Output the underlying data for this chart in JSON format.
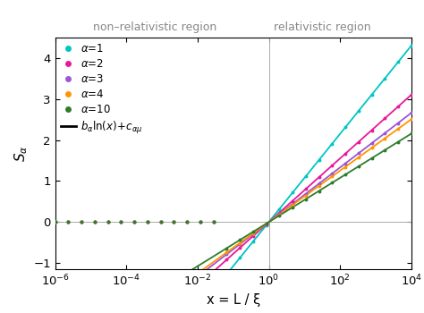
{
  "title_left": "non–relativistic region",
  "title_right": "relativistic region",
  "xlabel": "x = L / ξ",
  "ylabel": "$S_\\alpha$",
  "xlim_log": [
    -6,
    4
  ],
  "ylim": [
    -1.15,
    4.5
  ],
  "vline_x": 1.0,
  "hline_y": 0.0,
  "series": [
    {
      "alpha": 1,
      "b": 0.467,
      "c": 0.0,
      "color": "#00C5C5",
      "label": "\\u03b1=1"
    },
    {
      "alpha": 2,
      "b": 0.337,
      "c": 0.0,
      "color": "#E8189A",
      "label": "\\u03b1=2"
    },
    {
      "alpha": 3,
      "b": 0.289,
      "c": 0.0,
      "color": "#9B55D5",
      "label": "\\u03b1=3"
    },
    {
      "alpha": 4,
      "b": 0.272,
      "c": 0.0,
      "color": "#FF9500",
      "label": "\\u03b1=4"
    },
    {
      "alpha": 10,
      "b": 0.234,
      "c": 0.0,
      "color": "#2E7D2E",
      "label": "\\u03b1=10"
    }
  ],
  "dot_count": 28,
  "background_color": "#ffffff"
}
